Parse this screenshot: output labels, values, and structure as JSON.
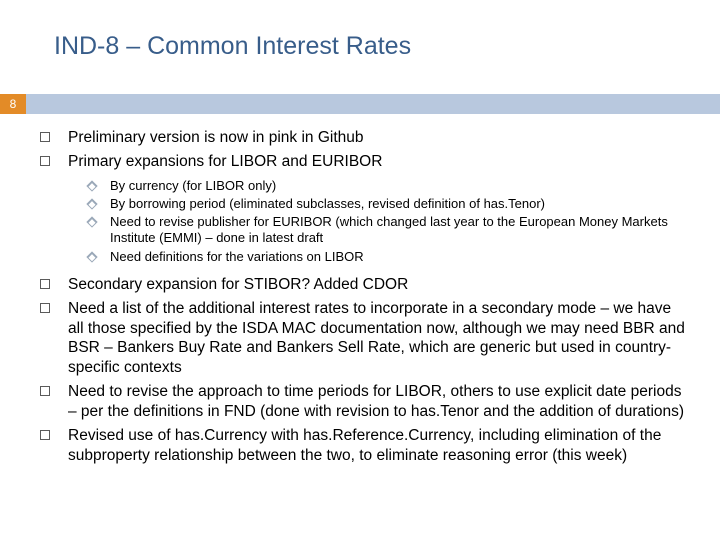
{
  "title": "IND-8 – Common Interest Rates",
  "page_number": "8",
  "colors": {
    "title": "#385d8a",
    "bar": "#b8c8de",
    "page_box": "#e38b27",
    "page_num": "#ffffff",
    "body_text": "#000000",
    "diamond": "#9aa8b8"
  },
  "bullets": {
    "b0": "Preliminary version is now in pink in Github",
    "b1": "Primary expansions for LIBOR and EURIBOR",
    "b1_sub": {
      "s0": "By currency (for LIBOR only)",
      "s1": "By borrowing period (eliminated subclasses, revised definition of has.Tenor)",
      "s2": "Need to revise publisher for EURIBOR (which changed last year to the European Money Markets Institute (EMMI) – done in latest draft",
      "s3": "Need definitions for the variations on LIBOR"
    },
    "b2": "Secondary expansion for STIBOR?  Added CDOR",
    "b3": "Need a list of the additional interest rates to incorporate in a secondary mode – we have all those specified by the ISDA MAC documentation now, although we may need BBR and BSR – Bankers Buy Rate and Bankers Sell Rate, which are generic but used in country-specific contexts",
    "b4": "Need to revise the approach to time periods for LIBOR, others to use explicit date periods – per the definitions in FND (done with revision to has.Tenor and the addition of durations)",
    "b5": "Revised use of has.Currency with has.Reference.Currency, including elimination of the subproperty relationship between the two, to eliminate reasoning error (this week)"
  }
}
